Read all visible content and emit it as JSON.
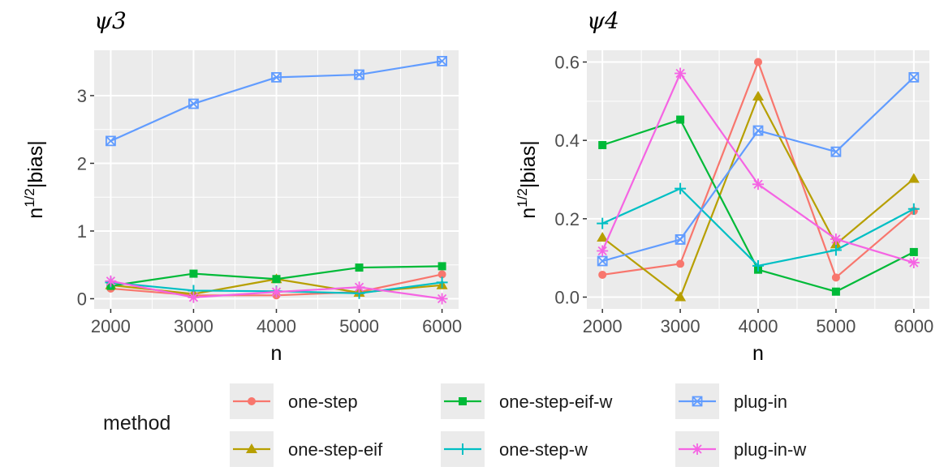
{
  "chart_data": [
    {
      "type": "line",
      "title": "ψ3",
      "xlabel": "n",
      "ylabel": "n^{1/2}|bias|",
      "ylabel_main": "n",
      "ylabel_sup": "1/2",
      "ylabel_tail": "|bias|",
      "x": [
        2000,
        3000,
        4000,
        5000,
        6000
      ],
      "xlim": [
        1800,
        6200
      ],
      "ylim": [
        -0.15,
        3.67
      ],
      "xticks": [
        2000,
        3000,
        4000,
        5000,
        6000
      ],
      "xtick_labels": [
        "2000",
        "3000",
        "4000",
        "5000",
        "6000"
      ],
      "yticks": [
        0,
        1,
        2,
        3
      ],
      "ytick_labels": [
        "0",
        "1",
        "2",
        "3"
      ],
      "grid": true,
      "series": [
        {
          "name": "one-step",
          "values": [
            0.15,
            0.05,
            0.05,
            0.1,
            0.36
          ]
        },
        {
          "name": "one-step-eif",
          "values": [
            0.2,
            0.07,
            0.29,
            0.09,
            0.2
          ]
        },
        {
          "name": "one-step-eif-w",
          "values": [
            0.19,
            0.37,
            0.29,
            0.46,
            0.48
          ]
        },
        {
          "name": "one-step-w",
          "values": [
            0.24,
            0.12,
            0.11,
            0.08,
            0.24
          ]
        },
        {
          "name": "plug-in",
          "values": [
            2.33,
            2.88,
            3.27,
            3.31,
            3.51
          ]
        },
        {
          "name": "plug-in-w",
          "values": [
            0.26,
            0.02,
            0.1,
            0.17,
            0.0
          ]
        }
      ]
    },
    {
      "type": "line",
      "title": "ψ4",
      "xlabel": "n",
      "ylabel": "n^{1/2}|bias|",
      "ylabel_main": "n",
      "ylabel_sup": "1/2",
      "ylabel_tail": "|bias|",
      "x": [
        2000,
        3000,
        4000,
        5000,
        6000
      ],
      "xlim": [
        1800,
        6200
      ],
      "ylim": [
        -0.03,
        0.63
      ],
      "xticks": [
        2000,
        3000,
        4000,
        5000,
        6000
      ],
      "xtick_labels": [
        "2000",
        "3000",
        "4000",
        "5000",
        "6000"
      ],
      "yticks": [
        0.0,
        0.2,
        0.4,
        0.6
      ],
      "ytick_labels": [
        "0.0",
        "0.2",
        "0.4",
        "0.6"
      ],
      "grid": true,
      "series": [
        {
          "name": "one-step",
          "values": [
            0.057,
            0.085,
            0.6,
            0.05,
            0.22
          ]
        },
        {
          "name": "one-step-eif",
          "values": [
            0.152,
            0.0,
            0.512,
            0.135,
            0.302
          ]
        },
        {
          "name": "one-step-eif-w",
          "values": [
            0.388,
            0.453,
            0.07,
            0.014,
            0.115
          ]
        },
        {
          "name": "one-step-w",
          "values": [
            0.188,
            0.277,
            0.08,
            0.12,
            0.225
          ]
        },
        {
          "name": "plug-in",
          "values": [
            0.092,
            0.147,
            0.425,
            0.371,
            0.561
          ]
        },
        {
          "name": "plug-in-w",
          "values": [
            0.118,
            0.571,
            0.288,
            0.148,
            0.088
          ]
        }
      ]
    }
  ],
  "legend": {
    "title": "method",
    "items": [
      {
        "name": "one-step",
        "color": "#F8766D",
        "marker": "circle"
      },
      {
        "name": "one-step-eif",
        "color": "#B79F00",
        "marker": "triangle"
      },
      {
        "name": "one-step-eif-w",
        "color": "#00BA38",
        "marker": "square"
      },
      {
        "name": "one-step-w",
        "color": "#00BFC4",
        "marker": "plus"
      },
      {
        "name": "plug-in",
        "color": "#619CFF",
        "marker": "boxed-x"
      },
      {
        "name": "plug-in-w",
        "color": "#F564E3",
        "marker": "asterisk"
      }
    ]
  }
}
